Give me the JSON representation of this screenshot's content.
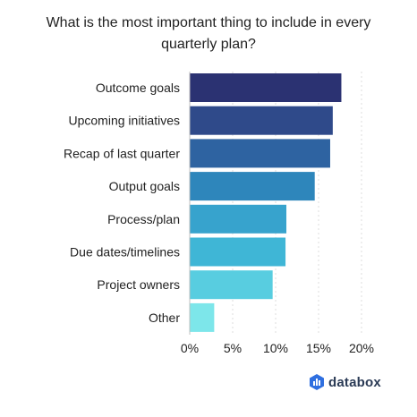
{
  "chart_data": {
    "type": "bar",
    "orientation": "horizontal",
    "title": "What is the most important thing to include in every quarterly plan?",
    "xlabel": "",
    "ylabel": "",
    "categories": [
      "Outcome goals",
      "Upcoming initiatives",
      "Recap of last quarter",
      "Output goals",
      "Process/plan",
      "Due dates/timelines",
      "Project owners",
      "Other"
    ],
    "values": [
      17.6,
      16.6,
      16.3,
      14.5,
      11.2,
      11.1,
      9.6,
      2.8
    ],
    "xlim": [
      0,
      20
    ],
    "ticks": [
      0,
      5,
      10,
      15,
      20
    ],
    "tick_labels": [
      "0%",
      "5%",
      "10%",
      "15%",
      "20%"
    ],
    "grid": true,
    "legend": "none",
    "bar_colors": [
      "#2b3272",
      "#2f4a8a",
      "#2e63a1",
      "#2e86bb",
      "#37a3cd",
      "#3fb6d6",
      "#58cde0",
      "#7de6ea"
    ]
  },
  "branding": {
    "logo_text": "databox",
    "logo_icon": "databox-logo-icon",
    "logo_color": "#2f6fe0"
  }
}
